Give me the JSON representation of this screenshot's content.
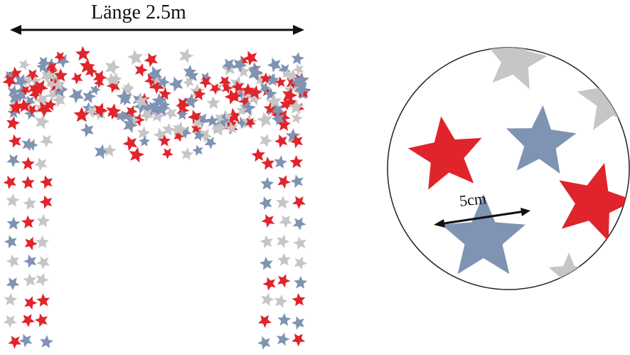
{
  "length_label": "Länge 2.5m",
  "size_label": "5cm",
  "colors": {
    "red": "#e0242b",
    "blue": "#7f93b3",
    "silver": "#c6c6c6",
    "arrow": "#111111",
    "circle_border": "#222222"
  }
}
